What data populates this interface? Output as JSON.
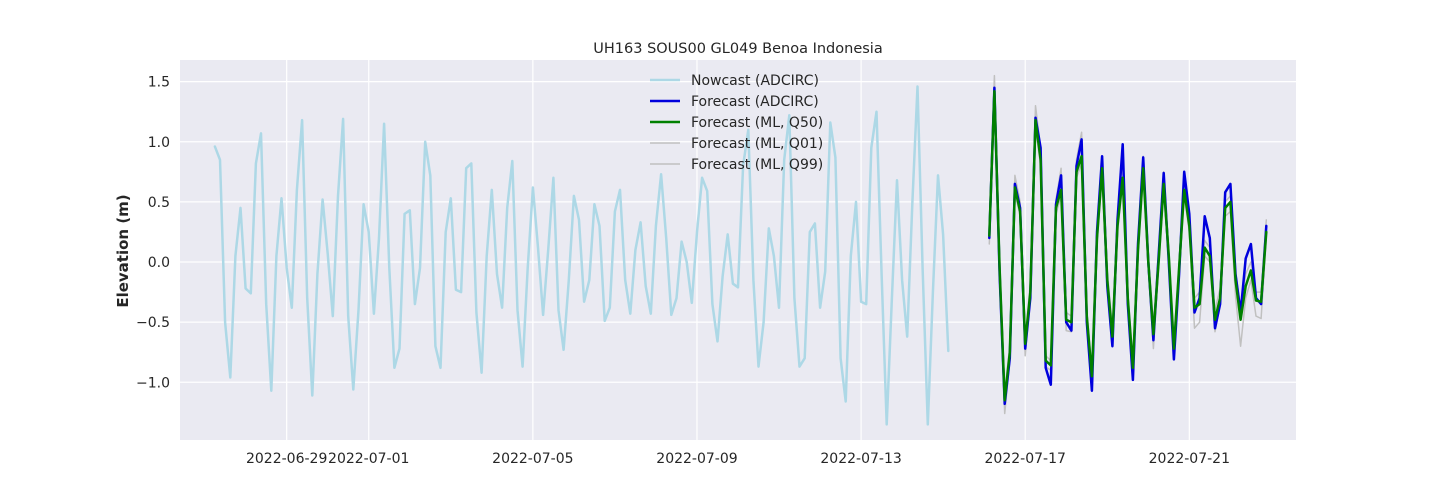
{
  "chart_data": {
    "type": "line",
    "title": "UH163 SOUS00 GL049 Benoa Indonesia",
    "xlabel": "",
    "ylabel": "Elevation (m)",
    "x_axis": "days since 2022-06-27",
    "xlim": [
      -0.6,
      26.6
    ],
    "ylim": [
      -1.48,
      1.68
    ],
    "grid": true,
    "background": "#eaeaf2",
    "legend_position": "upper center",
    "xticks": [
      {
        "value": 2,
        "label": "2022-06-29"
      },
      {
        "value": 4,
        "label": "2022-07-01"
      },
      {
        "value": 8,
        "label": "2022-07-05"
      },
      {
        "value": 12,
        "label": "2022-07-09"
      },
      {
        "value": 16,
        "label": "2022-07-13"
      },
      {
        "value": 20,
        "label": "2022-07-17"
      },
      {
        "value": 24,
        "label": "2022-07-21"
      }
    ],
    "yticks": [
      {
        "value": 1.5,
        "label": "1.5"
      },
      {
        "value": 1.0,
        "label": "1.0"
      },
      {
        "value": 0.5,
        "label": "0.5"
      },
      {
        "value": 0.0,
        "label": "0.0"
      },
      {
        "value": -0.5,
        "label": "−0.5"
      },
      {
        "value": -1.0,
        "label": "−1.0"
      }
    ],
    "series": [
      {
        "name": "Nowcast (ADCIRC)",
        "color": "#add8e6",
        "width": 2.5,
        "x": [
          0.25,
          0.375,
          0.5,
          0.625,
          0.75,
          0.875,
          1.0,
          1.125,
          1.25,
          1.375,
          1.5,
          1.625,
          1.75,
          1.875,
          2.0,
          2.125,
          2.25,
          2.375,
          2.5,
          2.625,
          2.75,
          2.875,
          3.0,
          3.125,
          3.25,
          3.375,
          3.5,
          3.625,
          3.75,
          3.875,
          4.0,
          4.125,
          4.25,
          4.375,
          4.5,
          4.625,
          4.75,
          4.875,
          5.0,
          5.125,
          5.25,
          5.375,
          5.5,
          5.625,
          5.75,
          5.875,
          6.0,
          6.125,
          6.25,
          6.375,
          6.5,
          6.625,
          6.75,
          6.875,
          7.0,
          7.125,
          7.25,
          7.375,
          7.5,
          7.625,
          7.75,
          7.875,
          8.0,
          8.125,
          8.25,
          8.375,
          8.5,
          8.625,
          8.75,
          8.875,
          9.0,
          9.125,
          9.25,
          9.375,
          9.5,
          9.625,
          9.75,
          9.875,
          10.0,
          10.125,
          10.25,
          10.375,
          10.5,
          10.625,
          10.75,
          10.875,
          11.0,
          11.125,
          11.25,
          11.375,
          11.5,
          11.625,
          11.75,
          11.875,
          12.0,
          12.125,
          12.25,
          12.375,
          12.5,
          12.625,
          12.75,
          12.875,
          13.0,
          13.125,
          13.25,
          13.375,
          13.5,
          13.625,
          13.75,
          13.875,
          14.0,
          14.125,
          14.25,
          14.375,
          14.5,
          14.625,
          14.75,
          14.875,
          15.0,
          15.125,
          15.25,
          15.375,
          15.5,
          15.625,
          15.75,
          15.875,
          16.0,
          16.125,
          16.25,
          16.375,
          16.5,
          16.625,
          16.75,
          16.875,
          17.0,
          17.125,
          17.25,
          17.375,
          17.5,
          17.625,
          17.75,
          17.875,
          18.0,
          18.125,
          18.25,
          18.375,
          18.5,
          18.625,
          18.75,
          18.875,
          19.0,
          19.125
        ],
        "y": [
          0.96,
          0.85,
          -0.5,
          -0.96,
          0.05,
          0.45,
          -0.22,
          -0.26,
          0.82,
          1.07,
          -0.35,
          -1.07,
          0.05,
          0.53,
          -0.05,
          -0.38,
          0.6,
          1.18,
          -0.3,
          -1.11,
          -0.1,
          0.52,
          0.07,
          -0.45,
          0.55,
          1.19,
          -0.45,
          -1.06,
          -0.4,
          0.48,
          0.25,
          -0.43,
          0.2,
          1.15,
          -0.05,
          -0.88,
          -0.72,
          0.4,
          0.43,
          -0.35,
          -0.05,
          1.0,
          0.72,
          -0.7,
          -0.88,
          0.25,
          0.53,
          -0.23,
          -0.25,
          0.78,
          0.82,
          -0.42,
          -0.92,
          0.05,
          0.6,
          -0.1,
          -0.38,
          0.45,
          0.84,
          -0.4,
          -0.87,
          -0.05,
          0.62,
          0.12,
          -0.44,
          0.1,
          0.7,
          -0.4,
          -0.73,
          -0.15,
          0.55,
          0.35,
          -0.33,
          -0.15,
          0.48,
          0.3,
          -0.49,
          -0.38,
          0.42,
          0.6,
          -0.15,
          -0.43,
          0.1,
          0.33,
          -0.2,
          -0.43,
          0.3,
          0.73,
          0.2,
          -0.44,
          -0.3,
          0.17,
          0.0,
          -0.34,
          0.25,
          0.7,
          0.59,
          -0.35,
          -0.66,
          -0.12,
          0.23,
          -0.18,
          -0.21,
          0.8,
          1.1,
          -0.15,
          -0.87,
          -0.5,
          0.28,
          0.05,
          -0.38,
          0.85,
          1.22,
          -0.3,
          -0.87,
          -0.8,
          0.25,
          0.32,
          -0.38,
          -0.08,
          1.16,
          0.87,
          -0.8,
          -1.16,
          0.05,
          0.5,
          -0.33,
          -0.35,
          0.95,
          1.25,
          -0.1,
          -1.35,
          -0.3,
          0.68,
          -0.15,
          -0.62,
          0.5,
          1.46,
          -0.05,
          -1.35,
          -0.25,
          0.72,
          0.23,
          -0.74,
          null,
          null,
          null,
          null,
          null,
          null,
          null,
          null
        ]
      },
      {
        "name": "Forecast (ADCIRC)",
        "color": "#0000dd",
        "width": 2.5,
        "x": [
          19.125,
          19.25,
          19.375,
          19.5,
          19.625,
          19.75,
          19.875,
          20.0,
          20.125,
          20.25,
          20.375,
          20.5,
          20.625,
          20.75,
          20.875,
          21.0,
          21.125,
          21.25,
          21.375,
          21.5,
          21.625,
          21.75,
          21.875,
          22.0,
          22.125,
          22.25,
          22.375,
          22.5,
          22.625,
          22.75,
          22.875,
          23.0,
          23.125,
          23.25,
          23.375,
          23.5,
          23.625,
          23.75,
          23.875,
          24.0,
          24.125,
          24.25,
          24.375,
          24.5,
          24.625,
          24.75,
          24.875,
          25.0,
          25.125,
          25.25,
          25.375,
          25.5,
          25.625,
          25.75,
          25.875
        ],
        "y": [
          0.2,
          1.45,
          -0.1,
          -1.18,
          -0.8,
          0.65,
          0.45,
          -0.72,
          -0.3,
          1.2,
          0.95,
          -0.88,
          -1.02,
          0.48,
          0.72,
          -0.5,
          -0.57,
          0.8,
          1.02,
          -0.5,
          -1.07,
          0.25,
          0.88,
          -0.2,
          -0.7,
          0.35,
          0.98,
          -0.35,
          -0.98,
          0.15,
          0.87,
          0.0,
          -0.65,
          0.05,
          0.74,
          0.0,
          -0.81,
          -0.1,
          0.75,
          0.4,
          -0.42,
          -0.3,
          0.38,
          0.2,
          -0.55,
          -0.35,
          0.58,
          0.65,
          -0.1,
          -0.42,
          0.03,
          0.15,
          -0.3,
          -0.35,
          0.3
        ]
      },
      {
        "name": "Forecast (ML, Q50)",
        "color": "#008000",
        "width": 2.5,
        "x": [
          19.125,
          19.25,
          19.375,
          19.5,
          19.625,
          19.75,
          19.875,
          20.0,
          20.125,
          20.25,
          20.375,
          20.5,
          20.625,
          20.75,
          20.875,
          21.0,
          21.125,
          21.25,
          21.375,
          21.5,
          21.625,
          21.75,
          21.875,
          22.0,
          22.125,
          22.25,
          22.375,
          22.5,
          22.625,
          22.75,
          22.875,
          23.0,
          23.125,
          23.25,
          23.375,
          23.5,
          23.625,
          23.75,
          23.875,
          24.0,
          24.125,
          24.25,
          24.375,
          24.5,
          24.625,
          24.75,
          24.875,
          25.0,
          25.125,
          25.25,
          25.375,
          25.5,
          25.625,
          25.75,
          25.875
        ],
        "y": [
          0.22,
          1.42,
          -0.05,
          -1.15,
          -0.75,
          0.62,
          0.42,
          -0.68,
          -0.25,
          1.18,
          0.85,
          -0.82,
          -0.86,
          0.45,
          0.6,
          -0.48,
          -0.5,
          0.75,
          0.88,
          -0.45,
          -0.95,
          0.2,
          0.78,
          -0.15,
          -0.62,
          0.3,
          0.7,
          -0.3,
          -0.88,
          0.1,
          0.78,
          0.0,
          -0.6,
          0.0,
          0.65,
          0.05,
          -0.72,
          -0.05,
          0.6,
          0.3,
          -0.38,
          -0.35,
          0.12,
          0.05,
          -0.48,
          -0.3,
          0.45,
          0.5,
          -0.15,
          -0.48,
          -0.2,
          -0.07,
          -0.32,
          -0.33,
          0.25
        ]
      },
      {
        "name": "Forecast (ML, Q01)",
        "color": "#c0c0c0",
        "width": 1.5,
        "x": [
          19.125,
          19.25,
          19.375,
          19.5,
          19.625,
          19.75,
          19.875,
          20.0,
          20.125,
          20.25,
          20.375,
          20.5,
          20.625,
          20.75,
          20.875,
          21.0,
          21.125,
          21.25,
          21.375,
          21.5,
          21.625,
          21.75,
          21.875,
          22.0,
          22.125,
          22.25,
          22.375,
          22.5,
          22.625,
          22.75,
          22.875,
          23.0,
          23.125,
          23.25,
          23.375,
          23.5,
          23.625,
          23.75,
          23.875,
          24.0,
          24.125,
          24.25,
          24.375,
          24.5,
          24.625,
          24.75,
          24.875,
          25.0,
          25.125,
          25.25,
          25.375,
          25.5,
          25.625,
          25.75,
          25.875
        ],
        "y": [
          0.15,
          1.35,
          -0.15,
          -1.26,
          -0.82,
          0.58,
          0.38,
          -0.78,
          -0.3,
          1.12,
          0.8,
          -0.87,
          -0.9,
          0.4,
          0.55,
          -0.57,
          -0.58,
          0.7,
          0.82,
          -0.52,
          -1.02,
          0.15,
          0.72,
          -0.22,
          -0.7,
          0.25,
          0.65,
          -0.38,
          -0.92,
          0.05,
          0.72,
          -0.05,
          -0.72,
          -0.05,
          0.58,
          0.0,
          -0.78,
          -0.1,
          0.55,
          0.25,
          -0.55,
          -0.5,
          0.05,
          0.0,
          -0.58,
          -0.35,
          0.38,
          0.42,
          -0.28,
          -0.7,
          -0.3,
          -0.15,
          -0.45,
          -0.47,
          0.2
        ]
      },
      {
        "name": "Forecast (ML, Q99)",
        "color": "#c0c0c0",
        "width": 1.5,
        "x": [
          19.125,
          19.25,
          19.375,
          19.5,
          19.625,
          19.75,
          19.875,
          20.0,
          20.125,
          20.25,
          20.375,
          20.5,
          20.625,
          20.75,
          20.875,
          21.0,
          21.125,
          21.25,
          21.375,
          21.5,
          21.625,
          21.75,
          21.875,
          22.0,
          22.125,
          22.25,
          22.375,
          22.5,
          22.625,
          22.75,
          22.875,
          23.0,
          23.125,
          23.25,
          23.375,
          23.5,
          23.625,
          23.75,
          23.875,
          24.0,
          24.125,
          24.25,
          24.375,
          24.5,
          24.625,
          24.75,
          24.875,
          25.0,
          25.125,
          25.25,
          25.375,
          25.5,
          25.625,
          25.75,
          25.875
        ],
        "y": [
          0.28,
          1.55,
          0.05,
          -1.08,
          -0.7,
          0.72,
          0.5,
          -0.62,
          -0.18,
          1.3,
          0.95,
          -0.78,
          -0.82,
          0.52,
          0.78,
          -0.42,
          -0.45,
          0.85,
          1.08,
          -0.4,
          -0.9,
          0.28,
          0.88,
          -0.08,
          -0.55,
          0.38,
          0.82,
          -0.25,
          -0.82,
          0.18,
          0.88,
          0.08,
          -0.52,
          0.08,
          0.75,
          0.1,
          -0.65,
          0.0,
          0.7,
          0.35,
          -0.3,
          -0.25,
          0.18,
          0.12,
          -0.4,
          -0.22,
          0.5,
          0.55,
          -0.08,
          -0.38,
          -0.1,
          0.0,
          -0.25,
          -0.25,
          0.35
        ]
      }
    ]
  }
}
